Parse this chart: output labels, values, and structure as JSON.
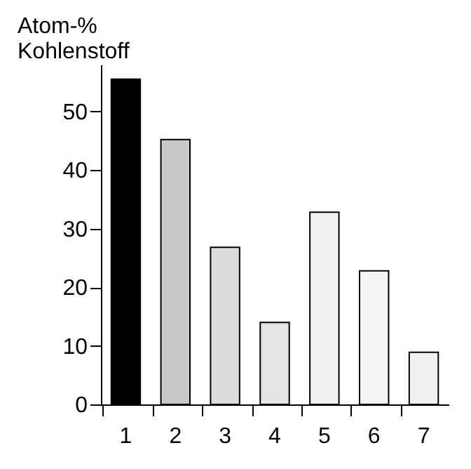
{
  "chart_data": {
    "type": "bar",
    "ylabel": "Atom-%\nKohlenstoff",
    "categories": [
      "1",
      "2",
      "3",
      "4",
      "5",
      "6",
      "7"
    ],
    "values": [
      55.5,
      45.2,
      26.8,
      14.0,
      32.8,
      22.8,
      8.9
    ],
    "colors": [
      "#000000",
      "#c8c8c8",
      "#dcdcdc",
      "#e4e4e4",
      "#f0f0f0",
      "#f4f4f4",
      "#f0f0f0"
    ],
    "ylim": [
      0,
      58
    ],
    "yticks": [
      0,
      10,
      20,
      30,
      40,
      50
    ],
    "grid": false
  }
}
